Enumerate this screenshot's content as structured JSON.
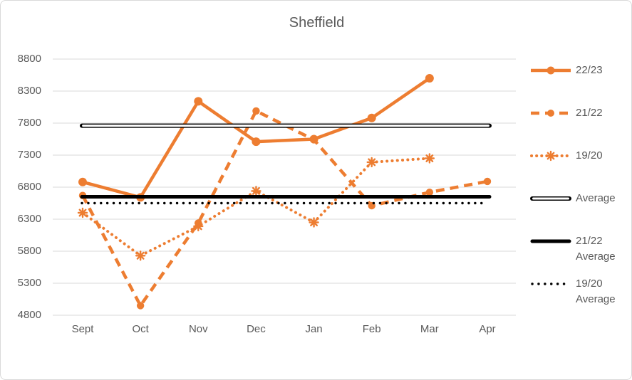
{
  "title": "Sheffield",
  "colors": {
    "series_orange": "#ED7D31",
    "average_black": "#000000",
    "gridline": "#D9D9D9",
    "text": "#595959",
    "background": "#FFFFFF"
  },
  "chart_data": {
    "type": "line",
    "title": "Sheffield",
    "categories": [
      "Sept",
      "Oct",
      "Nov",
      "Dec",
      "Jan",
      "Feb",
      "Mar",
      "Apr"
    ],
    "ylim": [
      4800,
      8800
    ],
    "y_ticks": [
      8800,
      8300,
      7800,
      7300,
      6800,
      6300,
      5800,
      5300,
      4800
    ],
    "grid": true,
    "legend_position": "right",
    "series": [
      {
        "name": "22/23",
        "color": "#ED7D31",
        "line": "solid",
        "marker": "circle",
        "values": [
          6880,
          6640,
          8140,
          7510,
          7550,
          7880,
          8500,
          null
        ]
      },
      {
        "name": "21/22",
        "color": "#ED7D31",
        "line": "dashed",
        "marker": "circle",
        "values": [
          6670,
          4950,
          6240,
          7990,
          7540,
          6510,
          6720,
          6890
        ]
      },
      {
        "name": "19/20",
        "color": "#ED7D31",
        "line": "dotted",
        "marker": "star",
        "values": [
          6400,
          5730,
          6190,
          6740,
          6250,
          7190,
          7250,
          null
        ]
      },
      {
        "name": "Average",
        "color": "#000000",
        "line": "double",
        "constant": 7760
      },
      {
        "name": "21/22 Average",
        "color": "#000000",
        "line": "thick",
        "constant": 6650
      },
      {
        "name": "19/20 Average",
        "color": "#000000",
        "line": "dotted-black",
        "constant": 6550
      }
    ]
  },
  "legend": {
    "items": [
      {
        "label": "22/23"
      },
      {
        "label": "21/22"
      },
      {
        "label": "19/20"
      },
      {
        "label": "Average"
      },
      {
        "label": "21/22\nAverage"
      },
      {
        "label": "19/20\nAverage"
      }
    ]
  }
}
